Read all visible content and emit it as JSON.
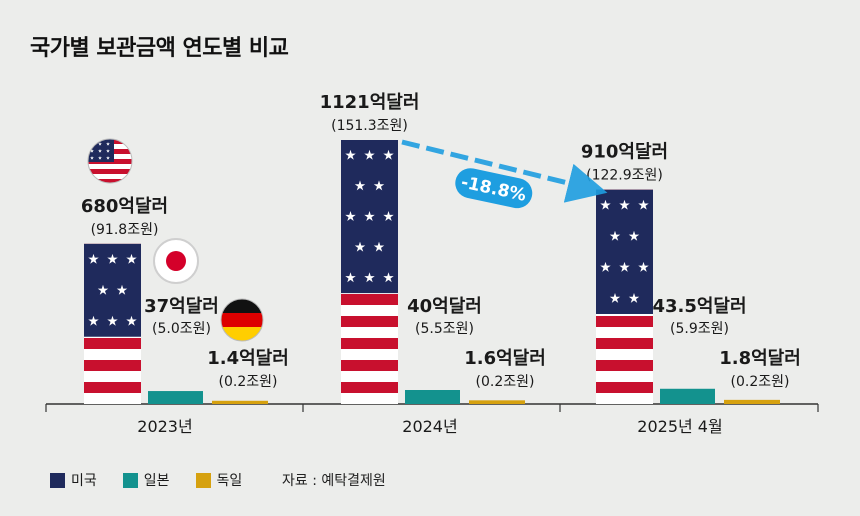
{
  "chart_data": {
    "type": "bar",
    "title": "국가별 보관금액 연도별 비교",
    "categories": [
      "2023년",
      "2024년",
      "2025년 4월"
    ],
    "unit": "억달러",
    "series": [
      {
        "name": "미국",
        "color": "#1f2a5c",
        "values": [
          680,
          1121,
          910
        ],
        "labels": [
          "680억달러",
          "1121억달러",
          "910억달러"
        ],
        "sublabels": [
          "(91.8조원)",
          "(151.3조원)",
          "(122.9조원)"
        ]
      },
      {
        "name": "일본",
        "color": "#13928e",
        "values": [
          37,
          40,
          43.5
        ],
        "labels": [
          "37억달러",
          "40억달러",
          "43.5억달러"
        ],
        "sublabels": [
          "(5.0조원)",
          "(5.5조원)",
          "(5.9조원)"
        ]
      },
      {
        "name": "독일",
        "color": "#d6a10f",
        "values": [
          1.4,
          1.6,
          1.8
        ],
        "labels": [
          "1.4억달러",
          "1.6억달러",
          "1.8억달러"
        ],
        "sublabels": [
          "(0.2조원)",
          "(0.2조원)",
          "(0.2조원)"
        ]
      }
    ],
    "annotation": {
      "text": "-18.8%",
      "color": "#1e9ee0"
    },
    "source": "자료 : 예탁결제원",
    "legend": "bottom-left"
  }
}
